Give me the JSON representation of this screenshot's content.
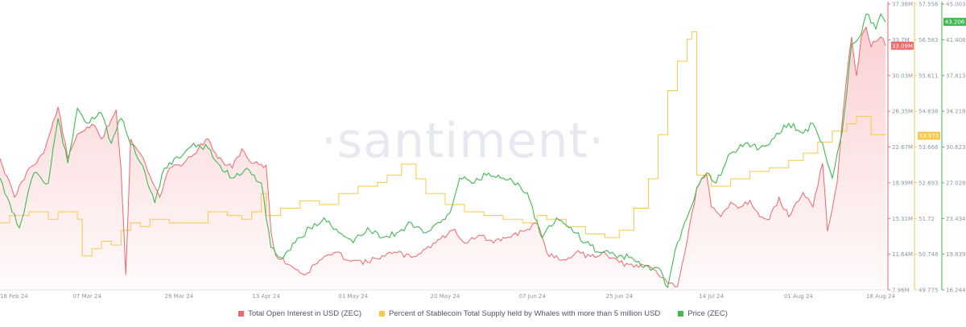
{
  "watermark": "·santiment·",
  "chart_data": {
    "type": "line",
    "x_ticks": [
      "18 Feb 24",
      "07 Mar 24",
      "26 Mar 24",
      "13 Apr 24",
      "01 May 24",
      "20 May 24",
      "07 Jun 24",
      "25 Jun 24",
      "14 Jul 24",
      "01 Aug 24",
      "18 Aug 24"
    ],
    "x_range": [
      "2024-02-18",
      "2024-08-19"
    ],
    "axes": {
      "oi": {
        "ticks": [
          "37.38M",
          "33.7M",
          "30.03M",
          "26.35M",
          "22.67M",
          "18.99M",
          "15.31M",
          "11.64M",
          "7.96M"
        ],
        "range": [
          7.96,
          37.38
        ],
        "unit": "M",
        "color": "#f0666b"
      },
      "stable": {
        "ticks": [
          "57.556",
          "56.583",
          "55.611",
          "54.638",
          "53.666",
          "52.693",
          "51.72",
          "50.748",
          "49.775"
        ],
        "range": [
          49.775,
          57.556
        ],
        "color": "#f7c948"
      },
      "price": {
        "ticks": [
          "45.003",
          "41.408",
          "37.813",
          "34.218",
          "30.623",
          "27.028",
          "23.434",
          "19.839",
          "16.244"
        ],
        "range": [
          16.244,
          45.003
        ],
        "color": "#3fb950"
      }
    },
    "badges": [
      {
        "series": "oi",
        "label": "33.09M",
        "value": 33.09,
        "color": "#f0666b"
      },
      {
        "series": "stable",
        "label": "53.973",
        "value": 53.973,
        "color": "#f7c948"
      },
      {
        "series": "price",
        "label": "43.206",
        "value": 43.206,
        "color": "#3fb950"
      }
    ],
    "series": [
      {
        "key": "oi",
        "name": "Total Open Interest in USD (ZEC)",
        "color": "#f0666b",
        "fill": true,
        "points": [
          [
            "2024-02-18",
            21.5
          ],
          [
            "2024-02-21",
            17.5
          ],
          [
            "2024-02-24",
            20.5
          ],
          [
            "2024-02-27",
            22
          ],
          [
            "2024-03-01",
            26.8
          ],
          [
            "2024-03-03",
            21.5
          ],
          [
            "2024-03-05",
            24
          ],
          [
            "2024-03-08",
            25
          ],
          [
            "2024-03-10",
            23.5
          ],
          [
            "2024-03-12",
            25.5
          ],
          [
            "2024-03-13",
            26.5
          ],
          [
            "2024-03-14",
            20.5
          ],
          [
            "2024-03-15",
            9.5
          ],
          [
            "2024-03-16",
            23.5
          ],
          [
            "2024-03-18",
            22
          ],
          [
            "2024-03-19",
            21
          ],
          [
            "2024-03-22",
            17.5
          ],
          [
            "2024-03-24",
            20.5
          ],
          [
            "2024-03-27",
            21
          ],
          [
            "2024-03-30",
            22.5
          ],
          [
            "2024-04-01",
            23.5
          ],
          [
            "2024-04-03",
            21.5
          ],
          [
            "2024-04-06",
            20.5
          ],
          [
            "2024-04-08",
            22.5
          ],
          [
            "2024-04-10",
            21
          ],
          [
            "2024-04-13",
            20.8
          ],
          [
            "2024-04-14",
            14
          ],
          [
            "2024-04-15",
            11.5
          ],
          [
            "2024-04-18",
            10.5
          ],
          [
            "2024-04-21",
            9.5
          ],
          [
            "2024-04-24",
            11
          ],
          [
            "2024-04-27",
            11.8
          ],
          [
            "2024-05-01",
            11
          ],
          [
            "2024-05-04",
            10.8
          ],
          [
            "2024-05-07",
            11.5
          ],
          [
            "2024-05-10",
            11.8
          ],
          [
            "2024-05-13",
            11.3
          ],
          [
            "2024-05-16",
            12.2
          ],
          [
            "2024-05-19",
            13.2
          ],
          [
            "2024-05-22",
            14.2
          ],
          [
            "2024-05-24",
            12.8
          ],
          [
            "2024-05-27",
            13.6
          ],
          [
            "2024-05-30",
            12.8
          ],
          [
            "2024-06-02",
            13.4
          ],
          [
            "2024-06-05",
            14
          ],
          [
            "2024-06-08",
            14.8
          ],
          [
            "2024-06-10",
            11.8
          ],
          [
            "2024-06-13",
            11
          ],
          [
            "2024-06-16",
            11.8
          ],
          [
            "2024-06-19",
            11.4
          ],
          [
            "2024-06-22",
            11.8
          ],
          [
            "2024-06-25",
            10.8
          ],
          [
            "2024-06-28",
            10.3
          ],
          [
            "2024-07-01",
            10.5
          ],
          [
            "2024-07-04",
            9.2
          ],
          [
            "2024-07-07",
            8.3
          ],
          [
            "2024-07-09",
            13
          ],
          [
            "2024-07-11",
            18.5
          ],
          [
            "2024-07-13",
            19.8
          ],
          [
            "2024-07-14",
            16.5
          ],
          [
            "2024-07-16",
            15.5
          ],
          [
            "2024-07-18",
            17
          ],
          [
            "2024-07-20",
            16.5
          ],
          [
            "2024-07-22",
            17.2
          ],
          [
            "2024-07-24",
            15.5
          ],
          [
            "2024-07-26",
            15.2
          ],
          [
            "2024-07-28",
            17.5
          ],
          [
            "2024-07-30",
            15.5
          ],
          [
            "2024-08-02",
            18
          ],
          [
            "2024-08-04",
            16.5
          ],
          [
            "2024-08-06",
            21
          ],
          [
            "2024-08-07",
            14
          ],
          [
            "2024-08-09",
            19
          ],
          [
            "2024-08-10",
            25
          ],
          [
            "2024-08-11",
            30
          ],
          [
            "2024-08-12",
            34
          ],
          [
            "2024-08-13",
            30
          ],
          [
            "2024-08-14",
            34
          ],
          [
            "2024-08-15",
            35
          ],
          [
            "2024-08-16",
            33
          ],
          [
            "2024-08-18",
            34
          ],
          [
            "2024-08-19",
            33.09
          ]
        ]
      },
      {
        "key": "stable",
        "name": "Percent of Stablecoin Total Supply held by Whales with more than 5 million USD",
        "color": "#f7c948",
        "points": [
          [
            "2024-02-18",
            51.6
          ],
          [
            "2024-02-20",
            51.8
          ],
          [
            "2024-02-24",
            51.9
          ],
          [
            "2024-02-28",
            51.7
          ],
          [
            "2024-03-01",
            51.9
          ],
          [
            "2024-03-05",
            51.7
          ],
          [
            "2024-03-06",
            50.7
          ],
          [
            "2024-03-08",
            50.9
          ],
          [
            "2024-03-10",
            51.1
          ],
          [
            "2024-03-12",
            51.0
          ],
          [
            "2024-03-14",
            51.4
          ],
          [
            "2024-03-16",
            51.6
          ],
          [
            "2024-03-18",
            51.5
          ],
          [
            "2024-03-20",
            51.7
          ],
          [
            "2024-03-24",
            51.6
          ],
          [
            "2024-03-28",
            51.6
          ],
          [
            "2024-04-01",
            51.9
          ],
          [
            "2024-04-05",
            51.8
          ],
          [
            "2024-04-08",
            51.7
          ],
          [
            "2024-04-10",
            51.9
          ],
          [
            "2024-04-12",
            52.4
          ],
          [
            "2024-04-13",
            51.8
          ],
          [
            "2024-04-16",
            52.0
          ],
          [
            "2024-04-20",
            52.2
          ],
          [
            "2024-04-24",
            52.1
          ],
          [
            "2024-04-28",
            52.4
          ],
          [
            "2024-05-02",
            52.6
          ],
          [
            "2024-05-06",
            52.7
          ],
          [
            "2024-05-08",
            52.9
          ],
          [
            "2024-05-11",
            53.2
          ],
          [
            "2024-05-14",
            52.8
          ],
          [
            "2024-05-16",
            52.4
          ],
          [
            "2024-05-20",
            52.1
          ],
          [
            "2024-05-24",
            51.9
          ],
          [
            "2024-05-28",
            51.8
          ],
          [
            "2024-06-01",
            51.7
          ],
          [
            "2024-06-05",
            51.6
          ],
          [
            "2024-06-08",
            51.8
          ],
          [
            "2024-06-10",
            51.7
          ],
          [
            "2024-06-14",
            51.5
          ],
          [
            "2024-06-18",
            51.3
          ],
          [
            "2024-06-22",
            51.2
          ],
          [
            "2024-06-25",
            51.4
          ],
          [
            "2024-06-28",
            52.0
          ],
          [
            "2024-07-01",
            52.8
          ],
          [
            "2024-07-03",
            54.0
          ],
          [
            "2024-07-05",
            55.2
          ],
          [
            "2024-07-07",
            56.0
          ],
          [
            "2024-07-09",
            56.6
          ],
          [
            "2024-07-10",
            56.8
          ],
          [
            "2024-07-11",
            52.9
          ],
          [
            "2024-07-14",
            52.6
          ],
          [
            "2024-07-18",
            52.8
          ],
          [
            "2024-07-22",
            53.0
          ],
          [
            "2024-07-26",
            53.1
          ],
          [
            "2024-07-30",
            53.3
          ],
          [
            "2024-08-02",
            53.5
          ],
          [
            "2024-08-05",
            53.8
          ],
          [
            "2024-08-08",
            54.1
          ],
          [
            "2024-08-11",
            54.3
          ],
          [
            "2024-08-13",
            54.5
          ],
          [
            "2024-08-16",
            54.0
          ],
          [
            "2024-08-19",
            53.973
          ]
        ]
      },
      {
        "key": "price",
        "name": "Price (ZEC)",
        "color": "#3fb950",
        "points": [
          [
            "2024-02-18",
            27.5
          ],
          [
            "2024-02-20",
            25
          ],
          [
            "2024-02-22",
            22.5
          ],
          [
            "2024-02-25",
            28
          ],
          [
            "2024-02-28",
            27
          ],
          [
            "2024-03-01",
            33.5
          ],
          [
            "2024-03-03",
            29
          ],
          [
            "2024-03-05",
            34.5
          ],
          [
            "2024-03-07",
            33
          ],
          [
            "2024-03-10",
            34
          ],
          [
            "2024-03-12",
            31
          ],
          [
            "2024-03-14",
            33.5
          ],
          [
            "2024-03-17",
            30
          ],
          [
            "2024-03-19",
            28
          ],
          [
            "2024-03-21",
            25
          ],
          [
            "2024-03-23",
            28.5
          ],
          [
            "2024-03-26",
            29.5
          ],
          [
            "2024-03-29",
            31
          ],
          [
            "2024-04-01",
            30.5
          ],
          [
            "2024-04-03",
            29
          ],
          [
            "2024-04-06",
            27.5
          ],
          [
            "2024-04-09",
            28.5
          ],
          [
            "2024-04-12",
            27
          ],
          [
            "2024-04-14",
            20.5
          ],
          [
            "2024-04-16",
            19.5
          ],
          [
            "2024-04-19",
            21
          ],
          [
            "2024-04-22",
            22.5
          ],
          [
            "2024-04-25",
            23.5
          ],
          [
            "2024-04-28",
            22
          ],
          [
            "2024-05-01",
            21
          ],
          [
            "2024-05-04",
            22.5
          ],
          [
            "2024-05-07",
            21.5
          ],
          [
            "2024-05-10",
            22
          ],
          [
            "2024-05-13",
            23
          ],
          [
            "2024-05-16",
            22
          ],
          [
            "2024-05-19",
            23
          ],
          [
            "2024-05-21",
            24
          ],
          [
            "2024-05-23",
            27.5
          ],
          [
            "2024-05-26",
            27
          ],
          [
            "2024-05-29",
            28
          ],
          [
            "2024-06-01",
            27.5
          ],
          [
            "2024-06-04",
            27
          ],
          [
            "2024-06-06",
            26
          ],
          [
            "2024-06-09",
            21.5
          ],
          [
            "2024-06-12",
            23.5
          ],
          [
            "2024-06-15",
            22.5
          ],
          [
            "2024-06-18",
            21
          ],
          [
            "2024-06-21",
            20
          ],
          [
            "2024-06-24",
            19.8
          ],
          [
            "2024-06-27",
            19.5
          ],
          [
            "2024-06-30",
            18.5
          ],
          [
            "2024-07-03",
            18.5
          ],
          [
            "2024-07-05",
            16.5
          ],
          [
            "2024-07-07",
            21
          ],
          [
            "2024-07-09",
            23.5
          ],
          [
            "2024-07-11",
            26.5
          ],
          [
            "2024-07-13",
            28
          ],
          [
            "2024-07-15",
            27
          ],
          [
            "2024-07-18",
            30
          ],
          [
            "2024-07-21",
            31
          ],
          [
            "2024-07-24",
            30.5
          ],
          [
            "2024-07-27",
            31.5
          ],
          [
            "2024-07-30",
            33
          ],
          [
            "2024-08-02",
            32
          ],
          [
            "2024-08-04",
            33
          ],
          [
            "2024-08-06",
            31
          ],
          [
            "2024-08-08",
            27.5
          ],
          [
            "2024-08-10",
            32
          ],
          [
            "2024-08-11",
            36
          ],
          [
            "2024-08-12",
            41
          ],
          [
            "2024-08-14",
            42
          ],
          [
            "2024-08-15",
            44
          ],
          [
            "2024-08-17",
            42.5
          ],
          [
            "2024-08-18",
            44
          ],
          [
            "2024-08-19",
            43.206
          ]
        ]
      }
    ]
  }
}
